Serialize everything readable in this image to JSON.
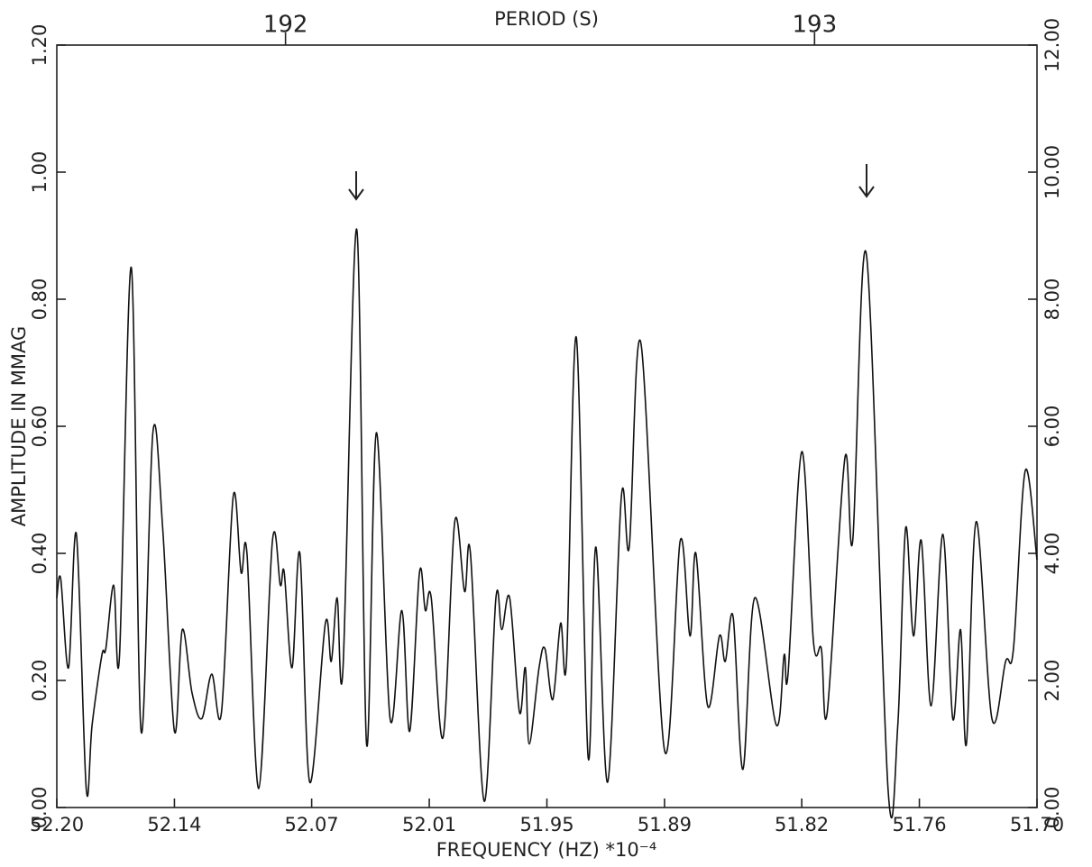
{
  "chart_data": {
    "type": "line",
    "xlabel": "FREQUENCY (HZ)   *10⁻⁴",
    "ylabel": "AMPLITUDE IN MMAG",
    "x2label": "PERIOD (S)",
    "xlim": [
      52.2,
      51.7
    ],
    "xticks": [
      {
        "value": 52.2,
        "label": "52.20"
      },
      52.14,
      52.07,
      52.01,
      51.95,
      51.89,
      51.82,
      51.76,
      {
        "value": 51.7,
        "label": "51.70"
      }
    ],
    "x2ticks": [
      192,
      193
    ],
    "ylim": [
      0,
      1.2
    ],
    "yticks": [
      {
        "value": 0,
        "label": "0.00"
      },
      {
        "value": 0.2,
        "label": "0.20"
      },
      {
        "value": 0.4,
        "label": "0.40"
      },
      {
        "value": 0.6,
        "label": "0.60"
      },
      {
        "value": 0.8,
        "label": "0.80"
      },
      {
        "value": 1.0,
        "label": "1.00"
      },
      {
        "value": 1.2,
        "label": "1.20"
      }
    ],
    "y2lim": [
      0,
      12
    ],
    "y2ticks": [
      {
        "value": 0,
        "label": "0.00"
      },
      {
        "value": 2,
        "label": "2.00"
      },
      {
        "value": 4,
        "label": "4.00"
      },
      {
        "value": 6,
        "label": "6.00"
      },
      {
        "value": 8,
        "label": "8.00"
      },
      {
        "value": 10,
        "label": "10.00"
      },
      {
        "value": 12,
        "label": "12.00"
      }
    ],
    "color": "#111111",
    "x": [
      52.2,
      52.198,
      52.194,
      52.19,
      52.185,
      52.182,
      52.177,
      52.175,
      52.171,
      52.168,
      52.162,
      52.157,
      52.151,
      52.146,
      52.14,
      52.136,
      52.131,
      52.126,
      52.121,
      52.116,
      52.11,
      52.106,
      52.103,
      52.097,
      52.09,
      52.086,
      52.084,
      52.08,
      52.076,
      52.071,
      52.063,
      52.06,
      52.057,
      52.054,
      52.047,
      52.042,
      52.037,
      52.03,
      52.024,
      52.02,
      52.015,
      52.012,
      52.009,
      52.003,
      51.997,
      51.992,
      51.989,
      51.982,
      51.976,
      51.973,
      51.969,
      51.964,
      51.961,
      51.959,
      51.954,
      51.951,
      51.947,
      51.943,
      51.94,
      51.935,
      51.929,
      51.925,
      51.919,
      51.912,
      51.908,
      51.902,
      51.89,
      51.882,
      51.877,
      51.874,
      51.868,
      51.862,
      51.859,
      51.855,
      51.85,
      51.844,
      51.833,
      51.829,
      51.827,
      51.82,
      51.814,
      51.81,
      51.807,
      51.798,
      51.794,
      51.787,
      51.776,
      51.771,
      51.767,
      51.763,
      51.759,
      51.754,
      51.748,
      51.743,
      51.739,
      51.736,
      51.731,
      51.723,
      51.716,
      51.712,
      51.706,
      51.7
    ],
    "values": [
      0.33,
      0.36,
      0.22,
      0.43,
      0.03,
      0.13,
      0.24,
      0.25,
      0.35,
      0.24,
      0.85,
      0.12,
      0.59,
      0.44,
      0.12,
      0.28,
      0.18,
      0.14,
      0.21,
      0.15,
      0.49,
      0.37,
      0.4,
      0.03,
      0.42,
      0.35,
      0.37,
      0.22,
      0.4,
      0.04,
      0.29,
      0.23,
      0.33,
      0.22,
      0.91,
      0.1,
      0.59,
      0.14,
      0.31,
      0.12,
      0.37,
      0.31,
      0.33,
      0.11,
      0.45,
      0.34,
      0.4,
      0.01,
      0.33,
      0.28,
      0.33,
      0.15,
      0.22,
      0.1,
      0.22,
      0.25,
      0.17,
      0.29,
      0.23,
      0.74,
      0.08,
      0.41,
      0.04,
      0.49,
      0.41,
      0.73,
      0.09,
      0.42,
      0.27,
      0.4,
      0.16,
      0.27,
      0.23,
      0.3,
      0.06,
      0.33,
      0.13,
      0.24,
      0.21,
      0.56,
      0.26,
      0.25,
      0.15,
      0.55,
      0.42,
      0.87,
      0.03,
      0.13,
      0.44,
      0.27,
      0.42,
      0.16,
      0.43,
      0.14,
      0.28,
      0.1,
      0.45,
      0.14,
      0.23,
      0.25,
      0.53,
      0.39
    ]
  }
}
